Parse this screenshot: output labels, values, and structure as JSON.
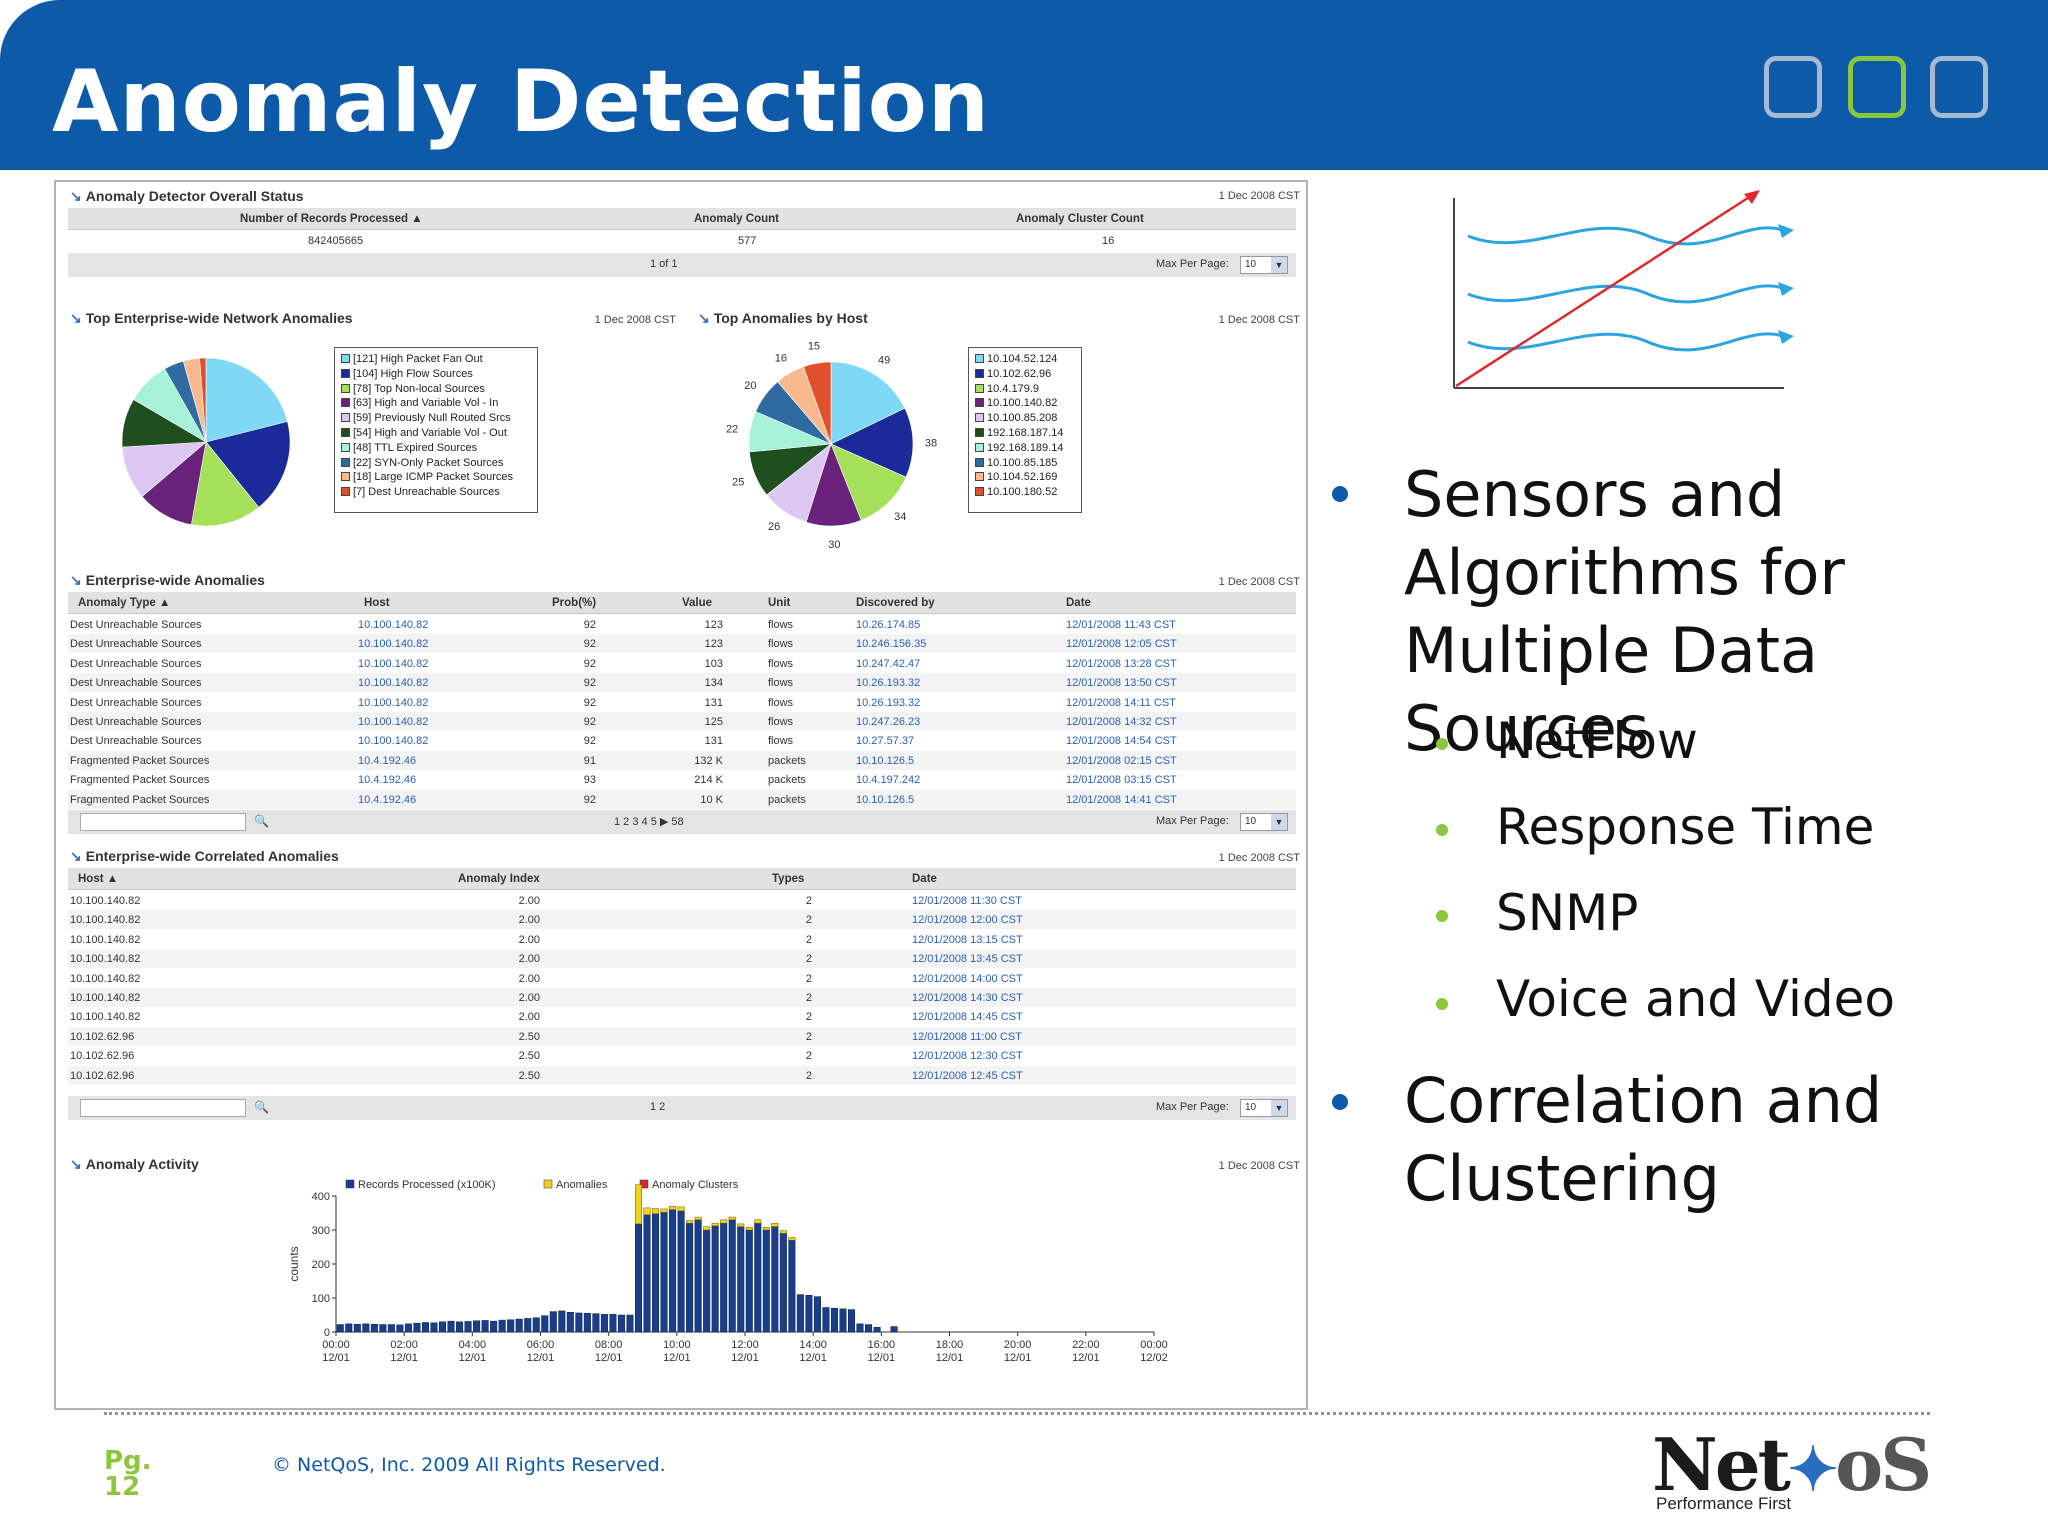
{
  "slide": {
    "title": "Anomaly Detection",
    "page_label": "Pg.",
    "page_number": "12",
    "copyright": "© NetQoS, Inc. 2009 All Rights Reserved.",
    "logo_name": "NetQoS",
    "logo_tagline": "Performance First",
    "colors": {
      "header": "#0d5aa8",
      "bullet_main": "#0d5aa8",
      "bullet_sub": "#8cc63f"
    }
  },
  "bullets": {
    "b1": "Sensors and Algorithms for Multiple Data Sources",
    "b1_lines": [
      "Sensors and",
      "Algorithms for",
      "Multiple Data Sources"
    ],
    "subs": [
      "NetFlow",
      "Response Time",
      "SNMP",
      "Voice and Video"
    ],
    "b2_lines": [
      "Correlation and",
      "Clustering"
    ]
  },
  "overall": {
    "title": "Anomaly Detector Overall Status",
    "date": "1 Dec 2008 CST",
    "headers": [
      "Number of Records Processed",
      "Anomaly Count",
      "Anomaly Cluster Count"
    ],
    "values": [
      "842405665",
      "577",
      "16"
    ],
    "pager": "1 of 1",
    "max_label": "Max Per Page:",
    "max_value": "10"
  },
  "top_net": {
    "title": "Top Enterprise-wide Network Anomalies",
    "date": "1 Dec 2008 CST",
    "legend": [
      {
        "label": "[121] High Packet Fan Out",
        "value": 121,
        "color": "#7fd8f6"
      },
      {
        "label": "[104] High Flow Sources",
        "value": 104,
        "color": "#1a2a99"
      },
      {
        "label": "[78] Top Non-local Sources",
        "value": 78,
        "color": "#a4e05a"
      },
      {
        "label": "[63] High and Variable Vol - In",
        "value": 63,
        "color": "#6a237b"
      },
      {
        "label": "[59] Previously Null Routed Srcs",
        "value": 59,
        "color": "#dcc7f3"
      },
      {
        "label": "[54] High and Variable Vol - Out",
        "value": 54,
        "color": "#1f4f1f"
      },
      {
        "label": "[48] TTL Expired Sources",
        "value": 48,
        "color": "#a6f2d8"
      },
      {
        "label": "[22] SYN-Only Packet Sources",
        "value": 22,
        "color": "#2f6aa0"
      },
      {
        "label": "[18] Large ICMP Packet Sources",
        "value": 18,
        "color": "#f8b890"
      },
      {
        "label": "[7] Dest Unreachable Sources",
        "value": 7,
        "color": "#e0502a"
      }
    ]
  },
  "top_host": {
    "title": "Top Anomalies by Host",
    "date": "1 Dec 2008 CST",
    "slice_values": [
      49,
      38,
      34,
      30,
      26,
      25,
      22,
      20,
      16,
      15
    ],
    "legend": [
      {
        "label": "10.104.52.124",
        "color": "#7fd8f6"
      },
      {
        "label": "10.102.62.96",
        "color": "#1a2a99"
      },
      {
        "label": "10.4.179.9",
        "color": "#a4e05a"
      },
      {
        "label": "10.100.140.82",
        "color": "#6a237b"
      },
      {
        "label": "10.100.85.208",
        "color": "#dcc7f3"
      },
      {
        "label": "192.168.187.14",
        "color": "#1f4f1f"
      },
      {
        "label": "192.168.189.14",
        "color": "#a6f2d8"
      },
      {
        "label": "10.100.85.185",
        "color": "#2f6aa0"
      },
      {
        "label": "10.104.52.169",
        "color": "#f8b890"
      },
      {
        "label": "10.100.180.52",
        "color": "#e0502a"
      }
    ]
  },
  "anomalies": {
    "title": "Enterprise-wide Anomalies",
    "date": "1 Dec 2008 CST",
    "headers": [
      "Anomaly Type",
      "Host",
      "Prob(%)",
      "Value",
      "Unit",
      "Discovered by",
      "Date"
    ],
    "rows": [
      [
        "Dest Unreachable Sources",
        "10.100.140.82",
        "92",
        "123",
        "flows",
        "10.26.174.85",
        "12/01/2008 11:43 CST"
      ],
      [
        "Dest Unreachable Sources",
        "10.100.140.82",
        "92",
        "123",
        "flows",
        "10.246.156.35",
        "12/01/2008 12:05 CST"
      ],
      [
        "Dest Unreachable Sources",
        "10.100.140.82",
        "92",
        "103",
        "flows",
        "10.247.42.47",
        "12/01/2008 13:28 CST"
      ],
      [
        "Dest Unreachable Sources",
        "10.100.140.82",
        "92",
        "134",
        "flows",
        "10.26.193.32",
        "12/01/2008 13:50 CST"
      ],
      [
        "Dest Unreachable Sources",
        "10.100.140.82",
        "92",
        "131",
        "flows",
        "10.26.193.32",
        "12/01/2008 14:11 CST"
      ],
      [
        "Dest Unreachable Sources",
        "10.100.140.82",
        "92",
        "125",
        "flows",
        "10.247.26.23",
        "12/01/2008 14:32 CST"
      ],
      [
        "Dest Unreachable Sources",
        "10.100.140.82",
        "92",
        "131",
        "flows",
        "10.27.57.37",
        "12/01/2008 14:54 CST"
      ],
      [
        "Fragmented Packet Sources",
        "10.4.192.46",
        "91",
        "132 K",
        "packets",
        "10.10.126.5",
        "12/01/2008 02:15 CST"
      ],
      [
        "Fragmented Packet Sources",
        "10.4.192.46",
        "93",
        "214 K",
        "packets",
        "10.4.197.242",
        "12/01/2008 03:15 CST"
      ],
      [
        "Fragmented Packet Sources",
        "10.4.192.46",
        "92",
        "10 K",
        "packets",
        "10.10.126.5",
        "12/01/2008 14:41 CST"
      ]
    ],
    "pager": "1  2  3  4  5  ▶  58",
    "max_label": "Max Per Page:",
    "max_value": "10"
  },
  "correlated": {
    "title": "Enterprise-wide Correlated Anomalies",
    "date": "1 Dec 2008 CST",
    "headers": [
      "Host",
      "Anomaly Index",
      "Types",
      "Date"
    ],
    "rows": [
      [
        "10.100.140.82",
        "2.00",
        "2",
        "12/01/2008 11:30 CST"
      ],
      [
        "10.100.140.82",
        "2.00",
        "2",
        "12/01/2008 12:00 CST"
      ],
      [
        "10.100.140.82",
        "2.00",
        "2",
        "12/01/2008 13:15 CST"
      ],
      [
        "10.100.140.82",
        "2.00",
        "2",
        "12/01/2008 13:45 CST"
      ],
      [
        "10.100.140.82",
        "2.00",
        "2",
        "12/01/2008 14:00 CST"
      ],
      [
        "10.100.140.82",
        "2.00",
        "2",
        "12/01/2008 14:30 CST"
      ],
      [
        "10.100.140.82",
        "2.00",
        "2",
        "12/01/2008 14:45 CST"
      ],
      [
        "10.102.62.96",
        "2.50",
        "2",
        "12/01/2008 11:00 CST"
      ],
      [
        "10.102.62.96",
        "2.50",
        "2",
        "12/01/2008 12:30 CST"
      ],
      [
        "10.102.62.96",
        "2.50",
        "2",
        "12/01/2008 12:45 CST"
      ]
    ],
    "pager": "1  2",
    "max_label": "Max Per Page:",
    "max_value": "10"
  },
  "activity": {
    "title": "Anomaly Activity",
    "date": "1 Dec 2008 CST"
  },
  "chart_data": {
    "type": "bar",
    "ylabel": "counts",
    "ylim": [
      0,
      400
    ],
    "yticks": [
      "0",
      "100",
      "200",
      "300",
      "400"
    ],
    "xticks": [
      [
        "00:00",
        "12/01"
      ],
      [
        "02:00",
        "12/01"
      ],
      [
        "04:00",
        "12/01"
      ],
      [
        "06:00",
        "12/01"
      ],
      [
        "08:00",
        "12/01"
      ],
      [
        "10:00",
        "12/01"
      ],
      [
        "12:00",
        "12/01"
      ],
      [
        "14:00",
        "12/01"
      ],
      [
        "16:00",
        "12/01"
      ],
      [
        "18:00",
        "12/01"
      ],
      [
        "20:00",
        "12/01"
      ],
      [
        "22:00",
        "12/01"
      ],
      [
        "00:00",
        "12/02"
      ]
    ],
    "legend_position": "top",
    "series": [
      {
        "name": "Records Processed (x100K)",
        "color": "#1a3f8a",
        "values": [
          22,
          24,
          23,
          24,
          23,
          22,
          22,
          21,
          24,
          26,
          28,
          27,
          30,
          32,
          30,
          31,
          33,
          34,
          32,
          35,
          36,
          38,
          40,
          42,
          48,
          60,
          62,
          58,
          56,
          55,
          54,
          52,
          52,
          50,
          50,
          318,
          345,
          348,
          352,
          360,
          356,
          320,
          330,
          300,
          312,
          320,
          330,
          310,
          300,
          320,
          300,
          310,
          290,
          270,
          110,
          108,
          104,
          72,
          70,
          68,
          66,
          24,
          22,
          14,
          0,
          16
        ],
        "x": "15-minute buckets from 00:00 12/01"
      },
      {
        "name": "Anomalies",
        "color": "#f2d21a",
        "values": [
          0,
          0,
          0,
          0,
          0,
          0,
          0,
          0,
          0,
          0,
          0,
          0,
          0,
          0,
          0,
          0,
          0,
          0,
          0,
          0,
          0,
          0,
          0,
          0,
          0,
          0,
          0,
          0,
          0,
          0,
          0,
          0,
          0,
          0,
          0,
          115,
          20,
          15,
          10,
          10,
          12,
          8,
          8,
          10,
          8,
          10,
          8,
          8,
          8,
          10,
          8,
          10,
          8,
          8,
          0,
          0,
          0,
          0,
          0,
          0,
          0,
          0,
          0,
          0,
          0,
          0
        ]
      },
      {
        "name": "Anomaly Clusters",
        "color": "#d22a2a",
        "values": [
          0,
          0,
          0,
          0,
          0,
          0,
          0,
          0,
          0,
          0,
          0,
          0,
          0,
          0,
          0,
          0,
          0,
          0,
          0,
          0,
          0,
          0,
          0,
          0,
          0,
          0,
          0,
          0,
          0,
          0,
          0,
          0,
          0,
          0,
          0,
          0,
          0,
          0,
          0,
          0,
          0,
          0,
          0,
          0,
          0,
          0,
          0,
          0,
          0,
          0,
          0,
          0,
          0,
          0,
          0,
          0,
          0,
          0,
          0,
          0,
          0,
          0,
          0,
          0,
          0,
          0
        ]
      }
    ]
  }
}
